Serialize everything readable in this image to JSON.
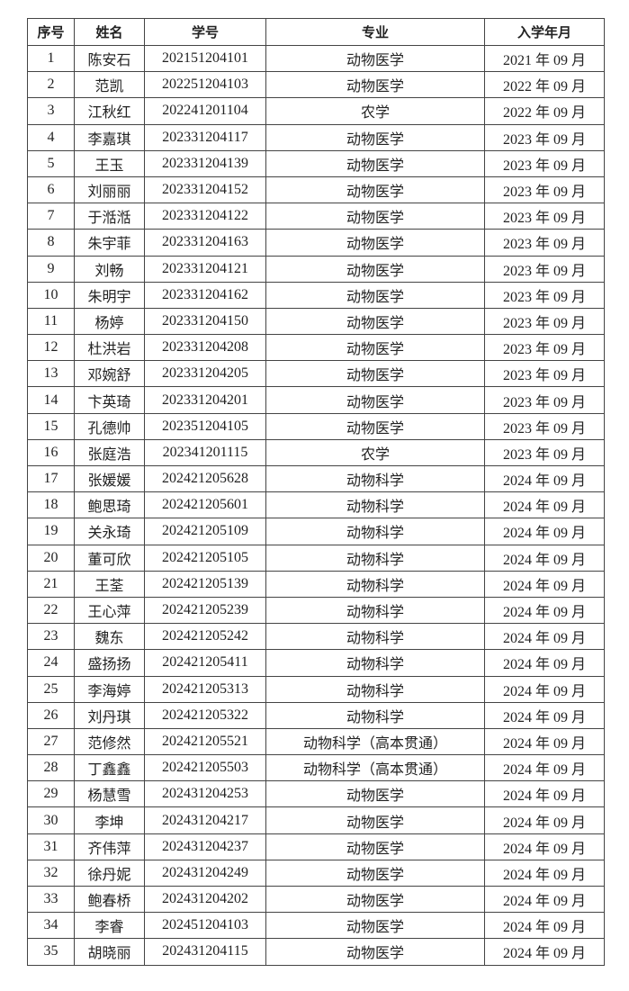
{
  "headers": [
    "序号",
    "姓名",
    "学号",
    "专业",
    "入学年月"
  ],
  "rows": [
    [
      "1",
      "陈安石",
      "202151204101",
      "动物医学",
      "2021 年 09 月"
    ],
    [
      "2",
      "范凯",
      "202251204103",
      "动物医学",
      "2022 年 09 月"
    ],
    [
      "3",
      "江秋红",
      "202241201104",
      "农学",
      "2022 年 09 月"
    ],
    [
      "4",
      "李嘉琪",
      "202331204117",
      "动物医学",
      "2023 年 09 月"
    ],
    [
      "5",
      "王玉",
      "202331204139",
      "动物医学",
      "2023 年 09 月"
    ],
    [
      "6",
      "刘丽丽",
      "202331204152",
      "动物医学",
      "2023 年 09 月"
    ],
    [
      "7",
      "于湉湉",
      "202331204122",
      "动物医学",
      "2023 年 09 月"
    ],
    [
      "8",
      "朱宇菲",
      "202331204163",
      "动物医学",
      "2023 年 09 月"
    ],
    [
      "9",
      "刘畅",
      "202331204121",
      "动物医学",
      "2023 年 09 月"
    ],
    [
      "10",
      "朱明宇",
      "202331204162",
      "动物医学",
      "2023 年 09 月"
    ],
    [
      "11",
      "杨婷",
      "202331204150",
      "动物医学",
      "2023 年 09 月"
    ],
    [
      "12",
      "杜洪岩",
      "202331204208",
      "动物医学",
      "2023 年 09 月"
    ],
    [
      "13",
      "邓婉舒",
      "202331204205",
      "动物医学",
      "2023 年 09 月"
    ],
    [
      "14",
      "卞英琦",
      "202331204201",
      "动物医学",
      "2023 年 09 月"
    ],
    [
      "15",
      "孔德帅",
      "202351204105",
      "动物医学",
      "2023 年 09 月"
    ],
    [
      "16",
      "张庭浩",
      "202341201115",
      "农学",
      "2023 年 09 月"
    ],
    [
      "17",
      "张媛媛",
      "202421205628",
      "动物科学",
      "2024 年 09 月"
    ],
    [
      "18",
      "鲍思琦",
      "202421205601",
      "动物科学",
      "2024 年 09 月"
    ],
    [
      "19",
      "关永琦",
      "202421205109",
      "动物科学",
      "2024 年 09 月"
    ],
    [
      "20",
      "董可欣",
      "202421205105",
      "动物科学",
      "2024 年 09 月"
    ],
    [
      "21",
      "王荃",
      "202421205139",
      "动物科学",
      "2024 年 09 月"
    ],
    [
      "22",
      "王心萍",
      "202421205239",
      "动物科学",
      "2024 年 09 月"
    ],
    [
      "23",
      "魏东",
      "202421205242",
      "动物科学",
      "2024 年 09 月"
    ],
    [
      "24",
      "盛扬扬",
      "202421205411",
      "动物科学",
      "2024 年 09 月"
    ],
    [
      "25",
      "李海婷",
      "202421205313",
      "动物科学",
      "2024 年 09 月"
    ],
    [
      "26",
      "刘丹琪",
      "202421205322",
      "动物科学",
      "2024 年 09 月"
    ],
    [
      "27",
      "范修然",
      "202421205521",
      "动物科学（高本贯通）",
      "2024 年 09 月"
    ],
    [
      "28",
      "丁鑫鑫",
      "202421205503",
      "动物科学（高本贯通）",
      "2024 年 09 月"
    ],
    [
      "29",
      "杨慧雪",
      "202431204253",
      "动物医学",
      "2024 年 09 月"
    ],
    [
      "30",
      "李坤",
      "202431204217",
      "动物医学",
      "2024 年 09 月"
    ],
    [
      "31",
      "齐伟萍",
      "202431204237",
      "动物医学",
      "2024 年 09 月"
    ],
    [
      "32",
      "徐丹妮",
      "202431204249",
      "动物医学",
      "2024 年 09 月"
    ],
    [
      "33",
      "鲍春桥",
      "202431204202",
      "动物医学",
      "2024 年 09 月"
    ],
    [
      "34",
      "李睿",
      "202451204103",
      "动物医学",
      "2024 年 09 月"
    ],
    [
      "35",
      "胡晓丽",
      "202431204115",
      "动物医学",
      "2024 年 09 月"
    ]
  ]
}
